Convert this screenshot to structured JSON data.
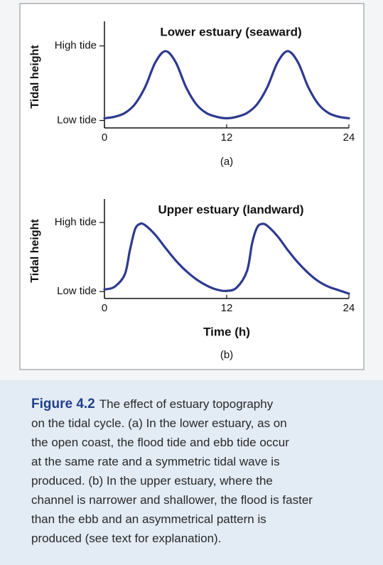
{
  "chart_data": [
    {
      "type": "line",
      "title": "Lower estuary (seaward)",
      "subtitle": "(a)",
      "y_label": "Tidal height",
      "x": [
        0,
        1,
        2,
        3,
        4,
        5,
        6,
        7,
        8,
        9,
        10,
        11,
        12,
        13,
        14,
        15,
        16,
        17,
        18,
        19,
        20,
        21,
        22,
        23,
        24
      ],
      "values": [
        0.03,
        0.05,
        0.1,
        0.22,
        0.45,
        0.78,
        0.93,
        0.78,
        0.45,
        0.22,
        0.1,
        0.05,
        0.03,
        0.05,
        0.1,
        0.22,
        0.45,
        0.78,
        0.93,
        0.78,
        0.45,
        0.22,
        0.1,
        0.05,
        0.03
      ],
      "color": "#2e3a8f",
      "xlim": [
        0,
        24
      ],
      "xticks": [
        0,
        12,
        24
      ],
      "ylim": [
        -0.1,
        1.33
      ],
      "yticks": [
        {
          "value": 0,
          "label": "Low tide"
        },
        {
          "value": 1,
          "label": "High tide"
        }
      ]
    },
    {
      "type": "line",
      "title": "Upper estuary (landward)",
      "subtitle": "(b)",
      "x_label": "Time (h)",
      "y_label": "Tidal height",
      "x": [
        0,
        1,
        2,
        2.5,
        3,
        3.5,
        4,
        5,
        6,
        7,
        8,
        9,
        10,
        11,
        12,
        13,
        14,
        14.5,
        15,
        15.5,
        16,
        17,
        18,
        19,
        20,
        21,
        22,
        23,
        24
      ],
      "values": [
        0.03,
        0.07,
        0.25,
        0.6,
        0.9,
        0.98,
        0.96,
        0.82,
        0.63,
        0.45,
        0.3,
        0.18,
        0.09,
        0.03,
        0.01,
        0.06,
        0.3,
        0.7,
        0.93,
        0.98,
        0.95,
        0.8,
        0.6,
        0.42,
        0.27,
        0.15,
        0.07,
        0.02,
        -0.03
      ],
      "color": "#2e3a8f",
      "xlim": [
        0,
        24
      ],
      "xticks": [
        0,
        12,
        24
      ],
      "ylim": [
        -0.1,
        1.34
      ],
      "yticks": [
        {
          "value": 0,
          "label": "Low tide"
        },
        {
          "value": 1,
          "label": "High tide"
        }
      ]
    }
  ],
  "caption": {
    "label": "Figure 4.2",
    "lines": [
      "The effect of estuary topography",
      "on the tidal cycle. (a) In the lower estuary, as on",
      "the open coast, the flood tide and ebb tide occur",
      "at the same rate and a symmetric tidal wave is",
      "produced. (b) In the upper estuary, where the",
      "channel is narrower and shallower, the flood is faster",
      "than the ebb and an asymmetrical pattern is",
      "produced (see text for explanation)."
    ]
  }
}
